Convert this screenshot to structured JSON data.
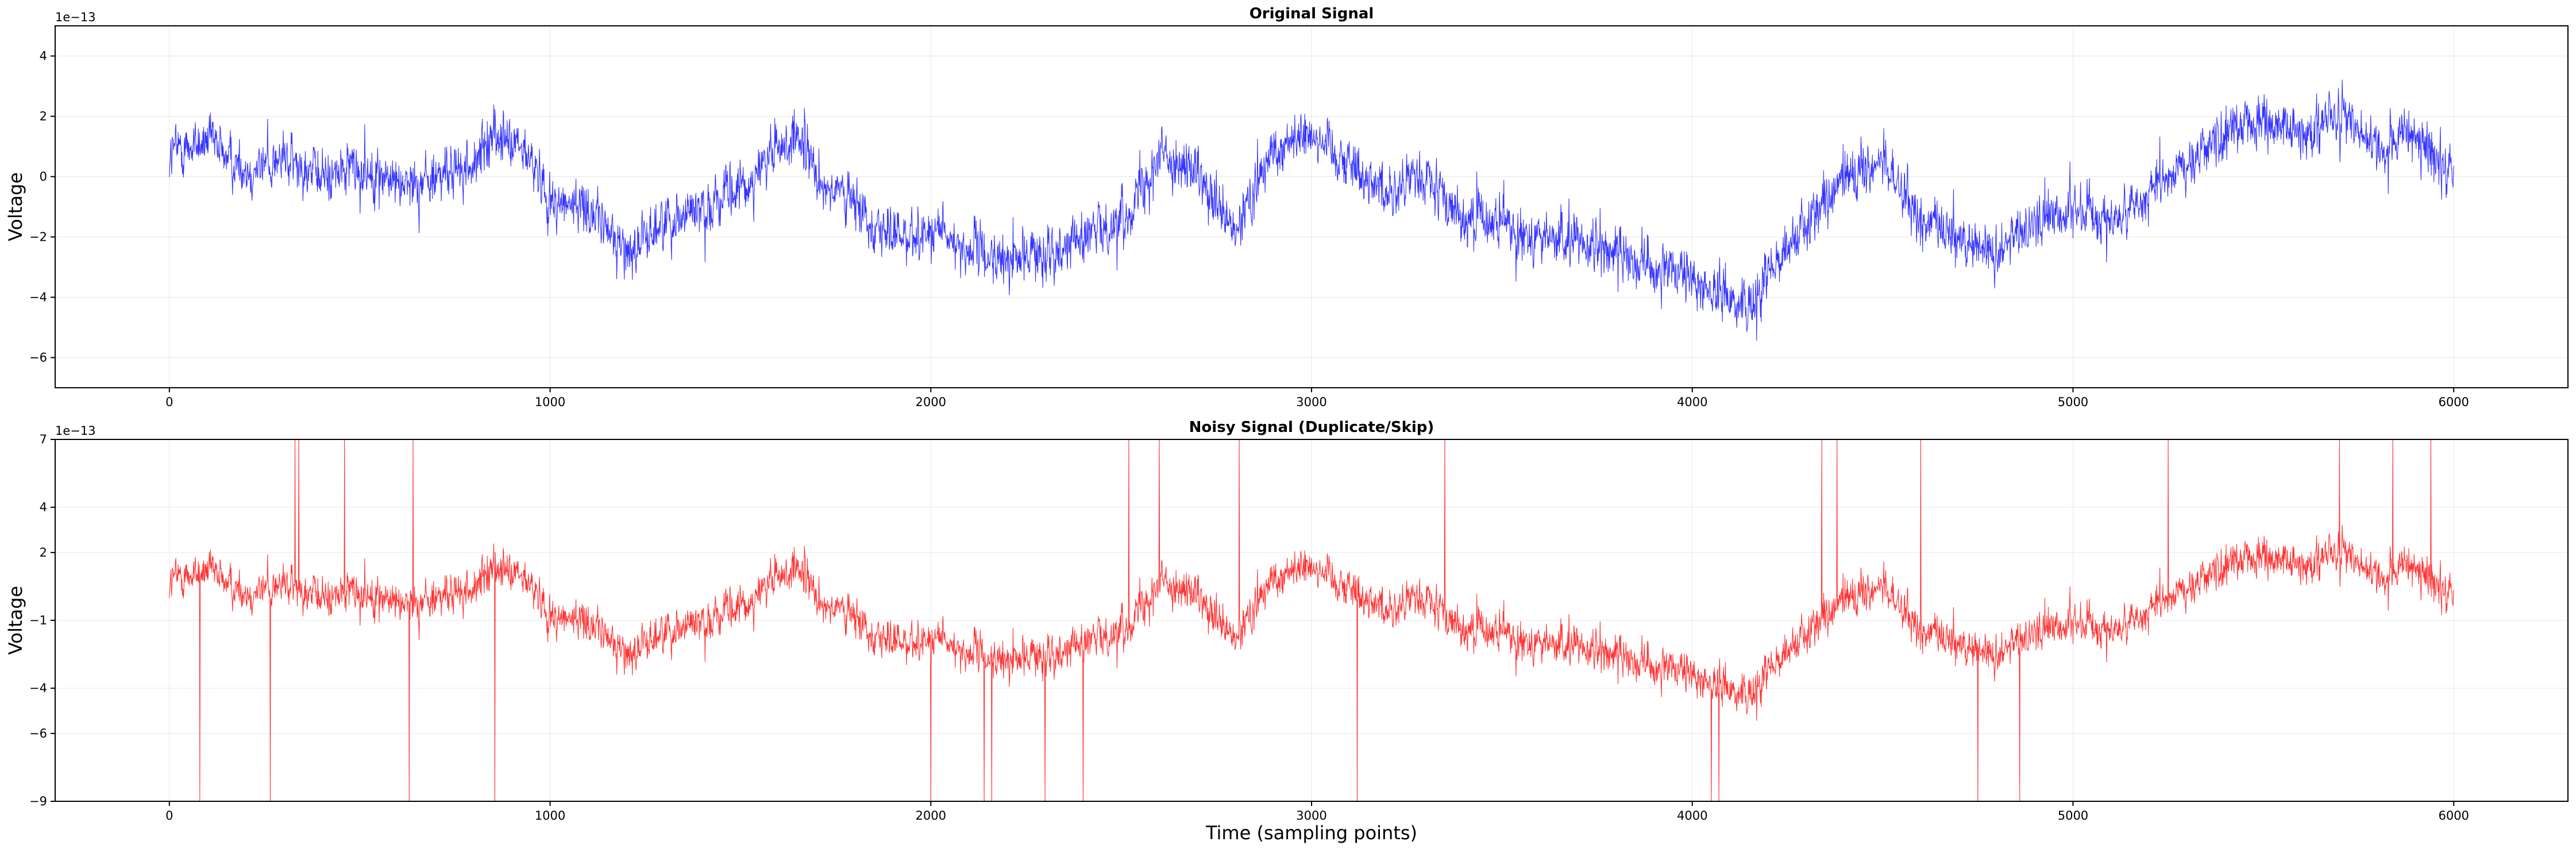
{
  "chart_data": [
    {
      "type": "line",
      "title": "Original Signal",
      "xlabel": "",
      "ylabel": "Voltage",
      "offset_text": "1e−13",
      "xlim": [
        -300,
        6300
      ],
      "ylim": [
        -7.0,
        5.0
      ],
      "x_ticks": [
        0,
        1000,
        2000,
        3000,
        4000,
        5000,
        6000
      ],
      "y_ticks": [
        -6,
        -4,
        -2,
        0,
        2,
        4
      ],
      "y_tick_labels": [
        "−6",
        "−4",
        "−2",
        "0",
        "2",
        "4"
      ],
      "grid": true,
      "x_range": [
        0,
        6000
      ],
      "series": [
        {
          "color": "#0000ff",
          "trend_x": [
            0,
            100,
            200,
            300,
            400,
            500,
            600,
            700,
            800,
            850,
            900,
            950,
            1000,
            1100,
            1200,
            1300,
            1400,
            1500,
            1600,
            1650,
            1700,
            1800,
            1900,
            2000,
            2100,
            2200,
            2300,
            2400,
            2500,
            2600,
            2700,
            2800,
            2900,
            3000,
            3100,
            3200,
            3300,
            3400,
            3500,
            3600,
            3700,
            3800,
            3900,
            4000,
            4100,
            4150,
            4200,
            4300,
            4400,
            4500,
            4600,
            4700,
            4800,
            4900,
            5000,
            5100,
            5200,
            5300,
            5400,
            5500,
            5600,
            5700,
            5800,
            5900,
            6000
          ],
          "trend_y": [
            0.8,
            1.2,
            0.2,
            0.6,
            0.0,
            0.3,
            -0.2,
            0.0,
            0.3,
            1.5,
            1.0,
            0.5,
            -0.8,
            -1.0,
            -2.5,
            -1.5,
            -1.0,
            -0.5,
            1.0,
            1.2,
            0.0,
            -1.0,
            -2.0,
            -1.8,
            -2.5,
            -2.8,
            -2.5,
            -2.0,
            -1.5,
            0.8,
            0.0,
            -2.0,
            1.0,
            1.5,
            0.5,
            -0.5,
            0.0,
            -1.5,
            -1.5,
            -2.0,
            -2.2,
            -2.5,
            -3.0,
            -3.5,
            -4.0,
            -4.5,
            -3.0,
            -1.5,
            0.0,
            0.5,
            -1.5,
            -2.0,
            -2.5,
            -1.5,
            -1.0,
            -1.5,
            -0.5,
            0.5,
            1.5,
            1.8,
            1.5,
            2.0,
            1.0,
            1.2,
            0.0
          ],
          "noise_amplitude": 1.0,
          "num_points": 6000
        }
      ]
    },
    {
      "type": "line",
      "title": "Noisy Signal (Duplicate/Skip)",
      "xlabel": "Time (sampling points)",
      "ylabel": "Voltage",
      "offset_text": "1e−13",
      "xlim": [
        -300,
        6300
      ],
      "ylim": [
        -9.0,
        7.0
      ],
      "x_ticks": [
        0,
        1000,
        2000,
        3000,
        4000,
        5000,
        6000
      ],
      "y_ticks": [
        -9,
        -6,
        -4,
        -1,
        2,
        4,
        7
      ],
      "y_tick_labels": [
        "−9",
        "−6",
        "−4",
        "−1",
        "2",
        "4",
        "7"
      ],
      "grid": true,
      "x_range": [
        0,
        6000
      ],
      "series": [
        {
          "color": "#ff0000",
          "trend_x": [
            0,
            100,
            200,
            300,
            400,
            500,
            600,
            700,
            800,
            850,
            900,
            950,
            1000,
            1100,
            1200,
            1300,
            1400,
            1500,
            1600,
            1650,
            1700,
            1800,
            1900,
            2000,
            2100,
            2200,
            2300,
            2400,
            2500,
            2600,
            2700,
            2800,
            2900,
            3000,
            3100,
            3200,
            3300,
            3400,
            3500,
            3600,
            3700,
            3800,
            3900,
            4000,
            4100,
            4150,
            4200,
            4300,
            4400,
            4500,
            4600,
            4700,
            4800,
            4900,
            5000,
            5100,
            5200,
            5300,
            5400,
            5500,
            5600,
            5700,
            5800,
            5900,
            6000
          ],
          "trend_y": [
            0.8,
            1.2,
            0.2,
            0.6,
            0.0,
            0.3,
            -0.2,
            0.0,
            0.3,
            1.5,
            1.0,
            0.5,
            -0.8,
            -1.0,
            -2.5,
            -1.5,
            -1.0,
            -0.5,
            1.0,
            1.2,
            0.0,
            -1.0,
            -2.0,
            -1.8,
            -2.5,
            -2.8,
            -2.5,
            -2.0,
            -1.5,
            0.8,
            0.0,
            -2.0,
            1.0,
            1.5,
            0.5,
            -0.5,
            0.0,
            -1.5,
            -1.5,
            -2.0,
            -2.2,
            -2.5,
            -3.0,
            -3.5,
            -4.0,
            -4.5,
            -3.0,
            -1.5,
            0.0,
            0.5,
            -1.5,
            -2.0,
            -2.5,
            -1.5,
            -1.0,
            -1.5,
            -0.5,
            0.5,
            1.5,
            1.8,
            1.5,
            2.0,
            1.0,
            1.2,
            0.0
          ],
          "noise_amplitude": 1.0,
          "num_points": 6000,
          "spikes_up_x": [
            330,
            340,
            460,
            640,
            855,
            2520,
            2600,
            2810,
            3350,
            4340,
            4380,
            4600,
            5250,
            5700,
            5840,
            5940
          ],
          "spikes_down_x": [
            80,
            265,
            630,
            855,
            2000,
            2140,
            2160,
            2300,
            2400,
            3120,
            4050,
            4070,
            4750,
            4860
          ]
        }
      ]
    }
  ]
}
